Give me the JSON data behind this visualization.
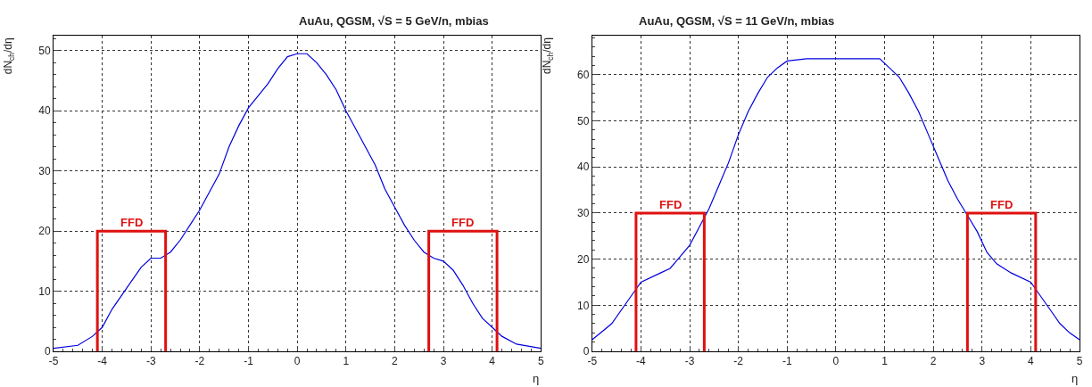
{
  "chart_data": [
    {
      "type": "line",
      "title": "AuAu, QGSM, √S = 5 GeV/n, mbias",
      "xlabel": "η",
      "ylabel": "dN$_{ch}$/dη",
      "xlim": [
        -5,
        5
      ],
      "xticks": [
        -5,
        -4,
        -3,
        -2,
        -1,
        0,
        1,
        2,
        3,
        4,
        5
      ],
      "ylim": [
        0,
        52.5
      ],
      "yticks": [
        0,
        10,
        20,
        30,
        40,
        50
      ],
      "grid": true,
      "series": [
        {
          "color": "#0000e0",
          "x": [
            -5,
            -4.5,
            -4.2,
            -4,
            -3.8,
            -3.5,
            -3.2,
            -3,
            -2.8,
            -2.6,
            -2.4,
            -2.2,
            -2,
            -1.8,
            -1.6,
            -1.4,
            -1.2,
            -1,
            -0.8,
            -0.6,
            -0.4,
            -0.2,
            0,
            0.2,
            0.4,
            0.6,
            0.8,
            1,
            1.2,
            1.4,
            1.6,
            1.8,
            2,
            2.2,
            2.4,
            2.6,
            2.8,
            3,
            3.2,
            3.4,
            3.6,
            3.8,
            4,
            4.2,
            4.5,
            5
          ],
          "values": [
            0.5,
            1,
            2.5,
            4,
            7,
            10.5,
            14,
            15.5,
            15.5,
            16.5,
            18.5,
            21,
            23.5,
            26.5,
            29.5,
            34,
            37.5,
            40.5,
            42.5,
            44.5,
            47,
            49,
            49.5,
            49.5,
            48,
            46,
            43.5,
            40,
            37,
            34,
            31,
            27,
            24,
            21,
            18.5,
            16.5,
            15.5,
            15,
            13.5,
            11,
            8,
            5.5,
            4,
            2.5,
            1.2,
            0.5
          ]
        },
        {
          "name": "FFD",
          "color": "#e01010",
          "x": [
            -4.1,
            -4.1,
            -2.7,
            -2.7
          ],
          "values": [
            0,
            20,
            20,
            0
          ]
        },
        {
          "name": "FFD",
          "color": "#e01010",
          "x": [
            2.7,
            2.7,
            4.1,
            4.1
          ],
          "values": [
            0,
            20,
            20,
            0
          ]
        }
      ]
    },
    {
      "type": "line",
      "title": "AuAu, QGSM, √S = 11 GeV/n, mbias",
      "xlabel": "η",
      "ylabel": "dN$_{ch}$/dη",
      "xlim": [
        -5,
        5
      ],
      "xticks": [
        -5,
        -4,
        -3,
        -2,
        -1,
        0,
        1,
        2,
        3,
        4,
        5
      ],
      "ylim": [
        0,
        68.5
      ],
      "yticks": [
        0,
        10,
        20,
        30,
        40,
        50,
        60
      ],
      "grid": true,
      "series": [
        {
          "color": "#0000e0",
          "x": [
            -5,
            -4.6,
            -4.2,
            -4,
            -3.6,
            -3.4,
            -3.2,
            -3,
            -2.8,
            -2.6,
            -2.4,
            -2.2,
            -2,
            -1.8,
            -1.6,
            -1.4,
            -1.2,
            -1,
            -0.6,
            0,
            0.6,
            0.9,
            1.1,
            1.3,
            1.5,
            1.7,
            1.9,
            2.1,
            2.3,
            2.5,
            2.7,
            2.9,
            3.1,
            3.3,
            3.6,
            4,
            4.2,
            4.4,
            4.6,
            4.8,
            5
          ],
          "values": [
            2.5,
            6,
            12,
            15,
            17,
            18,
            20.5,
            23,
            27,
            31,
            36,
            41,
            47,
            52,
            56,
            59.5,
            61.5,
            63,
            63.5,
            63.5,
            63.5,
            63.5,
            61.5,
            59.5,
            56,
            52,
            47,
            42,
            37,
            33,
            29.5,
            26,
            21.5,
            19,
            17,
            15,
            12,
            9,
            6,
            4,
            2.5
          ]
        },
        {
          "name": "FFD",
          "color": "#e01010",
          "x": [
            -4.1,
            -4.1,
            -2.7,
            -2.7
          ],
          "values": [
            0,
            30,
            30,
            0
          ]
        },
        {
          "name": "FFD",
          "color": "#e01010",
          "x": [
            2.7,
            2.7,
            4.1,
            4.1
          ],
          "values": [
            0,
            30,
            30,
            0
          ]
        }
      ]
    }
  ]
}
